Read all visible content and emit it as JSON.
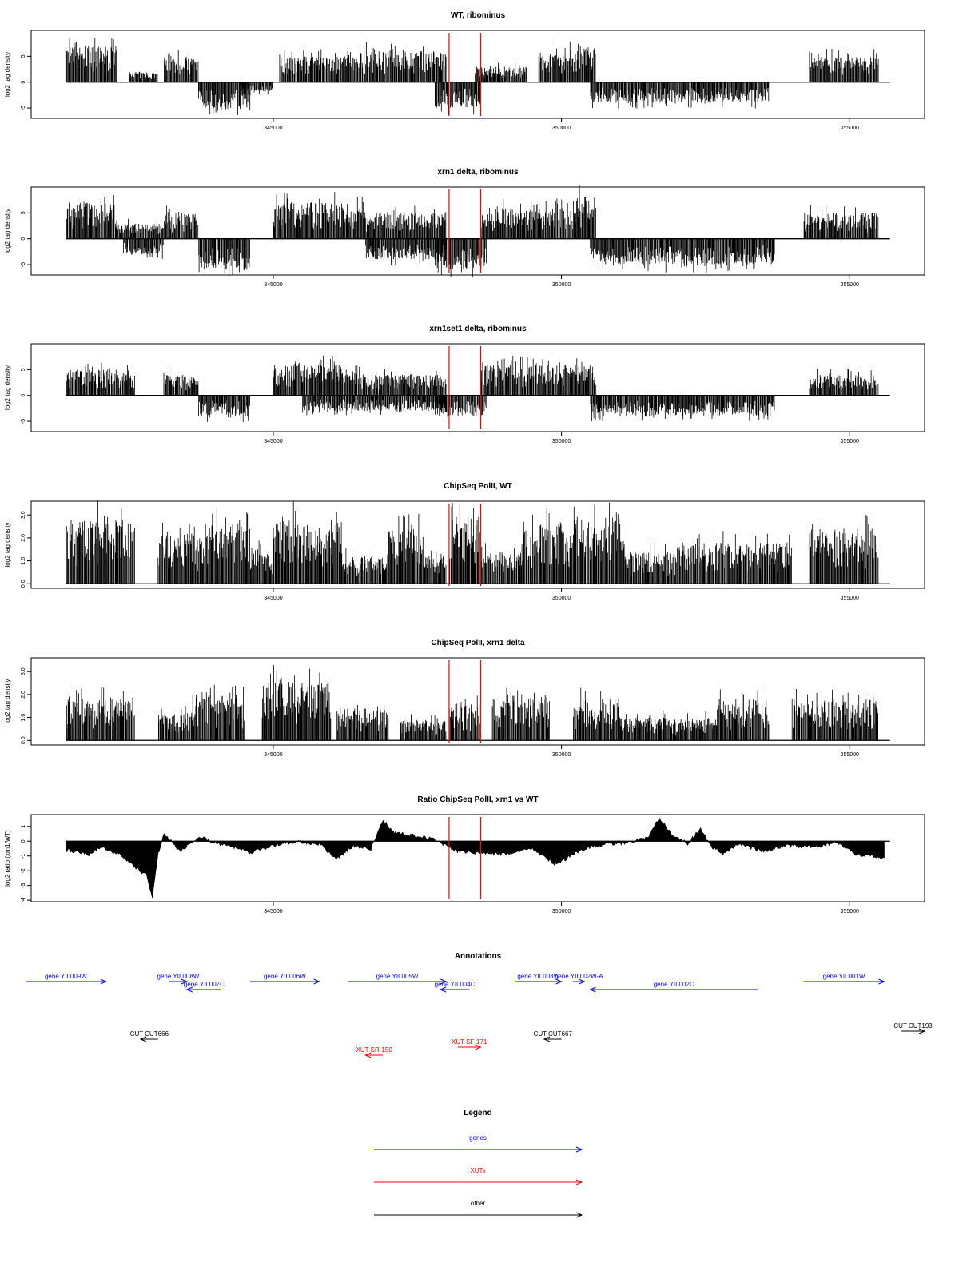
{
  "colors": {
    "axis": "#000000",
    "bars": "#000000",
    "marker": "#ff0000",
    "gene": "#0000ff",
    "xut": "#ff0000",
    "other": "#000000"
  },
  "chart_data": [
    {
      "type": "bar",
      "title": "WT, ribominus",
      "ylabel": "log2 tag density",
      "xlim": [
        340800,
        356300
      ],
      "ylim": [
        -7,
        10
      ],
      "yticks": [
        -5,
        0,
        5
      ],
      "ytick_labels": [
        "-5",
        "0",
        "5"
      ],
      "xticks": [
        345000,
        350000,
        355000
      ],
      "xtick_labels": [
        "345000",
        "350000",
        "355000"
      ],
      "markers_x": [
        348050,
        348600
      ],
      "segments": [
        {
          "from": 341400,
          "to": 342300,
          "sign": 1,
          "amp": 7
        },
        {
          "from": 342500,
          "to": 343000,
          "sign": 1,
          "amp": 2
        },
        {
          "from": 343100,
          "to": 343700,
          "sign": 1,
          "amp": 5
        },
        {
          "from": 343700,
          "to": 344600,
          "sign": -1,
          "amp": 5
        },
        {
          "from": 344400,
          "to": 345000,
          "sign": -1,
          "amp": 2
        },
        {
          "from": 345100,
          "to": 346500,
          "sign": 1,
          "amp": 5
        },
        {
          "from": 346500,
          "to": 348000,
          "sign": 1,
          "amp": 6
        },
        {
          "from": 347800,
          "to": 348600,
          "sign": -1,
          "amp": 5
        },
        {
          "from": 348500,
          "to": 349400,
          "sign": 1,
          "amp": 3
        },
        {
          "from": 349600,
          "to": 350300,
          "sign": 1,
          "amp": 6
        },
        {
          "from": 350300,
          "to": 350600,
          "sign": 1,
          "amp": 7
        },
        {
          "from": 350500,
          "to": 353600,
          "sign": -1,
          "amp": 4
        },
        {
          "from": 354300,
          "to": 355500,
          "sign": 1,
          "amp": 5
        }
      ]
    },
    {
      "type": "bar",
      "title": "xrn1 delta, ribominus",
      "ylabel": "log2 tag density",
      "xlim": [
        340800,
        356300
      ],
      "ylim": [
        -7,
        10
      ],
      "yticks": [
        -5,
        0,
        5
      ],
      "ytick_labels": [
        "-5",
        "0",
        "5"
      ],
      "xticks": [
        345000,
        350000,
        355000
      ],
      "xtick_labels": [
        "345000",
        "350000",
        "355000"
      ],
      "markers_x": [
        348050,
        348600
      ],
      "segments": [
        {
          "from": 341400,
          "to": 342300,
          "sign": 1,
          "amp": 7
        },
        {
          "from": 342300,
          "to": 343100,
          "sign": 1,
          "amp": 3
        },
        {
          "from": 342400,
          "to": 343100,
          "sign": -1,
          "amp": 3
        },
        {
          "from": 343100,
          "to": 343700,
          "sign": 1,
          "amp": 5
        },
        {
          "from": 343700,
          "to": 344600,
          "sign": -1,
          "amp": 6
        },
        {
          "from": 345000,
          "to": 346600,
          "sign": 1,
          "amp": 7
        },
        {
          "from": 346600,
          "to": 348000,
          "sign": 1,
          "amp": 5
        },
        {
          "from": 346600,
          "to": 348000,
          "sign": -1,
          "amp": 4
        },
        {
          "from": 347800,
          "to": 348700,
          "sign": -1,
          "amp": 6
        },
        {
          "from": 348600,
          "to": 350200,
          "sign": 1,
          "amp": 6
        },
        {
          "from": 350200,
          "to": 350600,
          "sign": 1,
          "amp": 8
        },
        {
          "from": 350500,
          "to": 353700,
          "sign": -1,
          "amp": 5
        },
        {
          "from": 354200,
          "to": 355500,
          "sign": 1,
          "amp": 5
        }
      ]
    },
    {
      "type": "bar",
      "title": "xrn1set1 delta, ribominus",
      "ylabel": "log2 tag density",
      "xlim": [
        340800,
        356300
      ],
      "ylim": [
        -7,
        10
      ],
      "yticks": [
        -5,
        0,
        5
      ],
      "ytick_labels": [
        "-5",
        "0",
        "5"
      ],
      "xticks": [
        345000,
        350000,
        355000
      ],
      "xtick_labels": [
        "345000",
        "350000",
        "355000"
      ],
      "markers_x": [
        348050,
        348600
      ],
      "segments": [
        {
          "from": 341400,
          "to": 342600,
          "sign": 1,
          "amp": 5
        },
        {
          "from": 343100,
          "to": 343700,
          "sign": 1,
          "amp": 4
        },
        {
          "from": 343700,
          "to": 344600,
          "sign": -1,
          "amp": 4
        },
        {
          "from": 345000,
          "to": 346500,
          "sign": 1,
          "amp": 6
        },
        {
          "from": 346500,
          "to": 348000,
          "sign": 1,
          "amp": 4
        },
        {
          "from": 345500,
          "to": 348000,
          "sign": -1,
          "amp": 3
        },
        {
          "from": 347800,
          "to": 348700,
          "sign": -1,
          "amp": 4
        },
        {
          "from": 348600,
          "to": 350200,
          "sign": 1,
          "amp": 6
        },
        {
          "from": 350200,
          "to": 350600,
          "sign": 1,
          "amp": 6
        },
        {
          "from": 350500,
          "to": 353700,
          "sign": -1,
          "amp": 4
        },
        {
          "from": 354300,
          "to": 355500,
          "sign": 1,
          "amp": 4
        }
      ]
    },
    {
      "type": "bar",
      "title": "ChipSeq PolII, WT",
      "ylabel": "log2 tag density",
      "xlim": [
        340800,
        356300
      ],
      "ylim": [
        -0.2,
        3.6
      ],
      "yticks": [
        0,
        1,
        2,
        3
      ],
      "ytick_labels": [
        "0.0",
        "1.0",
        "2.0",
        "3.0"
      ],
      "xticks": [
        345000,
        350000,
        355000
      ],
      "xtick_labels": [
        "345000",
        "350000",
        "355000"
      ],
      "markers_x": [
        348050,
        348600
      ],
      "segments": [
        {
          "from": 341400,
          "to": 342600,
          "sign": 1,
          "amp": 2.8
        },
        {
          "from": 343000,
          "to": 343700,
          "sign": 1,
          "amp": 2.2
        },
        {
          "from": 343700,
          "to": 344600,
          "sign": 1,
          "amp": 2.6
        },
        {
          "from": 344600,
          "to": 345000,
          "sign": 1,
          "amp": 1.6
        },
        {
          "from": 345000,
          "to": 346200,
          "sign": 1,
          "amp": 2.8
        },
        {
          "from": 346200,
          "to": 347000,
          "sign": 1,
          "amp": 1.2
        },
        {
          "from": 347000,
          "to": 347600,
          "sign": 1,
          "amp": 2.4
        },
        {
          "from": 347600,
          "to": 348000,
          "sign": 1,
          "amp": 1.2
        },
        {
          "from": 348050,
          "to": 348600,
          "sign": 1,
          "amp": 3
        },
        {
          "from": 348600,
          "to": 349300,
          "sign": 1,
          "amp": 1.4
        },
        {
          "from": 349300,
          "to": 350200,
          "sign": 1,
          "amp": 2.6
        },
        {
          "from": 350200,
          "to": 351100,
          "sign": 1,
          "amp": 2.8
        },
        {
          "from": 351100,
          "to": 352000,
          "sign": 1,
          "amp": 1.4
        },
        {
          "from": 352000,
          "to": 354000,
          "sign": 1,
          "amp": 1.8
        },
        {
          "from": 354300,
          "to": 355500,
          "sign": 1,
          "amp": 2.4
        }
      ]
    },
    {
      "type": "bar",
      "title": "ChipSeq PolII, xrn1 delta",
      "ylabel": "log2 tag density",
      "xlim": [
        340800,
        356300
      ],
      "ylim": [
        -0.2,
        3.6
      ],
      "yticks": [
        0,
        1,
        2,
        3
      ],
      "ytick_labels": [
        "0.0",
        "1.0",
        "2.0",
        "3.0"
      ],
      "xticks": [
        345000,
        350000,
        355000
      ],
      "xtick_labels": [
        "345000",
        "350000",
        "355000"
      ],
      "markers_x": [
        348050,
        348600
      ],
      "segments": [
        {
          "from": 341400,
          "to": 342600,
          "sign": 1,
          "amp": 1.8
        },
        {
          "from": 343000,
          "to": 343600,
          "sign": 1,
          "amp": 1.2
        },
        {
          "from": 343600,
          "to": 344500,
          "sign": 1,
          "amp": 2.0
        },
        {
          "from": 344800,
          "to": 346000,
          "sign": 1,
          "amp": 2.6
        },
        {
          "from": 346100,
          "to": 347000,
          "sign": 1,
          "amp": 1.4
        },
        {
          "from": 347200,
          "to": 348000,
          "sign": 1,
          "amp": 0.9
        },
        {
          "from": 348050,
          "to": 348600,
          "sign": 1,
          "amp": 1.6
        },
        {
          "from": 348800,
          "to": 349800,
          "sign": 1,
          "amp": 1.8
        },
        {
          "from": 350200,
          "to": 351000,
          "sign": 1,
          "amp": 1.8
        },
        {
          "from": 351000,
          "to": 352700,
          "sign": 1,
          "amp": 1.0
        },
        {
          "from": 352700,
          "to": 353600,
          "sign": 1,
          "amp": 1.8
        },
        {
          "from": 354000,
          "to": 355500,
          "sign": 1,
          "amp": 1.8
        }
      ]
    },
    {
      "type": "area",
      "title": "Ratio ChipSeq PolII, xrn1 vs WT",
      "ylabel": "log2 ratio (xrn1/WT)",
      "xlim": [
        340800,
        356300
      ],
      "ylim": [
        -4.1,
        1.8
      ],
      "yticks": [
        -4,
        -3,
        -2,
        -1,
        0,
        1
      ],
      "ytick_labels": [
        "-4",
        "-3",
        "-2",
        "-1",
        "0",
        "1"
      ],
      "xticks": [
        345000,
        350000,
        355000
      ],
      "xtick_labels": [
        "345000",
        "350000",
        "355000"
      ],
      "markers_x": [
        348050,
        348600
      ],
      "x": [
        341400,
        341800,
        342000,
        342300,
        342600,
        342800,
        342900,
        343000,
        343100,
        343400,
        343700,
        344000,
        344300,
        344600,
        345000,
        345400,
        345800,
        346100,
        346400,
        346700,
        346900,
        347100,
        347400,
        347800,
        348200,
        348600,
        349000,
        349500,
        349900,
        350200,
        350500,
        350800,
        351200,
        351500,
        351700,
        351900,
        352200,
        352400,
        352600,
        352800,
        353100,
        353500,
        353900,
        354400,
        354800,
        355100,
        355400,
        355600
      ],
      "y": [
        -0.6,
        -0.9,
        -0.4,
        -0.8,
        -1.8,
        -2.3,
        -3.9,
        -0.9,
        0.5,
        -0.7,
        0.3,
        -0.1,
        -0.4,
        -0.8,
        -0.3,
        0.0,
        -0.2,
        -1.2,
        -0.3,
        -0.5,
        1.4,
        0.6,
        0.4,
        0.1,
        -0.7,
        -0.8,
        -0.9,
        -0.5,
        -1.6,
        -0.9,
        -0.4,
        -0.2,
        -0.1,
        0.3,
        1.6,
        0.5,
        -0.2,
        0.9,
        -0.4,
        -0.8,
        -0.2,
        -0.7,
        -0.3,
        -0.4,
        -0.1,
        -0.9,
        -1.0,
        -1.2
      ]
    }
  ],
  "annotations": {
    "title": "Annotations",
    "features": [
      {
        "label": "gene YIL009W",
        "kind": "gene",
        "strand": "+",
        "start": 340500,
        "end": 342100,
        "track": 0
      },
      {
        "label": "gene YIL008W",
        "kind": "gene",
        "strand": "+",
        "start": 343200,
        "end": 343500,
        "track": 0
      },
      {
        "label": "gene YIL007C",
        "kind": "gene",
        "strand": "-",
        "start": 343500,
        "end": 344100,
        "track": 1
      },
      {
        "label": "gene YIL006W",
        "kind": "gene",
        "strand": "+",
        "start": 344600,
        "end": 345800,
        "track": 0
      },
      {
        "label": "gene YIL005W",
        "kind": "gene",
        "strand": "+",
        "start": 346300,
        "end": 348000,
        "track": 0
      },
      {
        "label": "gene YIL004C",
        "kind": "gene",
        "strand": "-",
        "start": 347900,
        "end": 348400,
        "track": 1
      },
      {
        "label": "gene YIL003W",
        "kind": "gene",
        "strand": "+",
        "start": 349200,
        "end": 350000,
        "track": 0
      },
      {
        "label": "gene YIL002W-A",
        "kind": "gene",
        "strand": "+",
        "start": 350200,
        "end": 350400,
        "track": 0
      },
      {
        "label": "gene YIL002C",
        "kind": "gene",
        "strand": "-",
        "start": 350500,
        "end": 353400,
        "track": 1
      },
      {
        "label": "gene YIL001W",
        "kind": "gene",
        "strand": "+",
        "start": 354200,
        "end": 355600,
        "track": 0
      },
      {
        "label": "CUT CUT666",
        "kind": "other",
        "strand": "-",
        "start": 342700,
        "end": 343000,
        "track": 3
      },
      {
        "label": "CUT CUT667",
        "kind": "other",
        "strand": "-",
        "start": 349700,
        "end": 350000,
        "track": 3
      },
      {
        "label": "CUT CUT193",
        "kind": "other",
        "strand": "+",
        "start": 355900,
        "end": 356300,
        "track": 2
      },
      {
        "label": "XUT SR-150",
        "kind": "xut",
        "strand": "-",
        "start": 346600,
        "end": 346900,
        "track": 5
      },
      {
        "label": "XUT SF-171",
        "kind": "xut",
        "strand": "+",
        "start": 348200,
        "end": 348600,
        "track": 4
      }
    ]
  },
  "legend": {
    "title": "Legend",
    "entries": [
      {
        "label": "genes",
        "kind": "gene"
      },
      {
        "label": "XUTs",
        "kind": "xut"
      },
      {
        "label": "other",
        "kind": "other"
      }
    ]
  }
}
